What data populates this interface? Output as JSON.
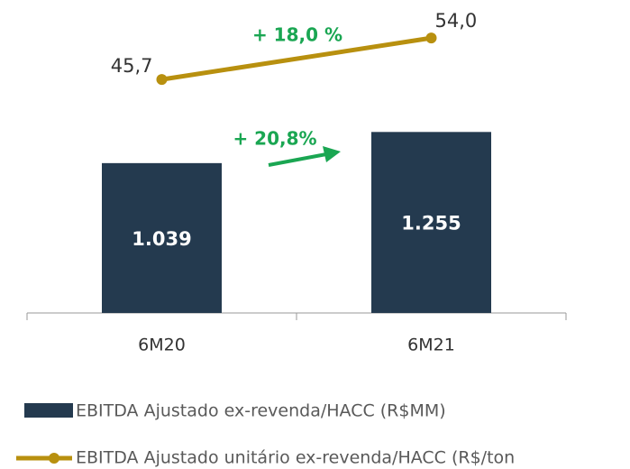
{
  "chart_data": {
    "type": "bar_line",
    "categories": [
      "6M20",
      "6M21"
    ],
    "series": [
      {
        "name": "EBITDA Ajustado ex-revenda/HACC  (R$MM)",
        "type": "bar",
        "color": "#243a4f",
        "values": [
          1039,
          1255
        ],
        "value_labels": [
          "1.039",
          "1.255"
        ]
      },
      {
        "name": "EBITDA Ajustado unitário ex-revenda/HACC (R$/ton",
        "type": "line",
        "axis": "y2",
        "color": "#b8900f",
        "values": [
          45.7,
          54.0
        ],
        "value_labels": [
          "45,7",
          "54,0"
        ]
      }
    ],
    "annotations": [
      "+ 18,0 %",
      "+ 20,8%"
    ],
    "annotation_color": "#1aa652",
    "ylim": [
      0,
      2170
    ],
    "y2lim": [
      -1,
      61.6
    ]
  }
}
